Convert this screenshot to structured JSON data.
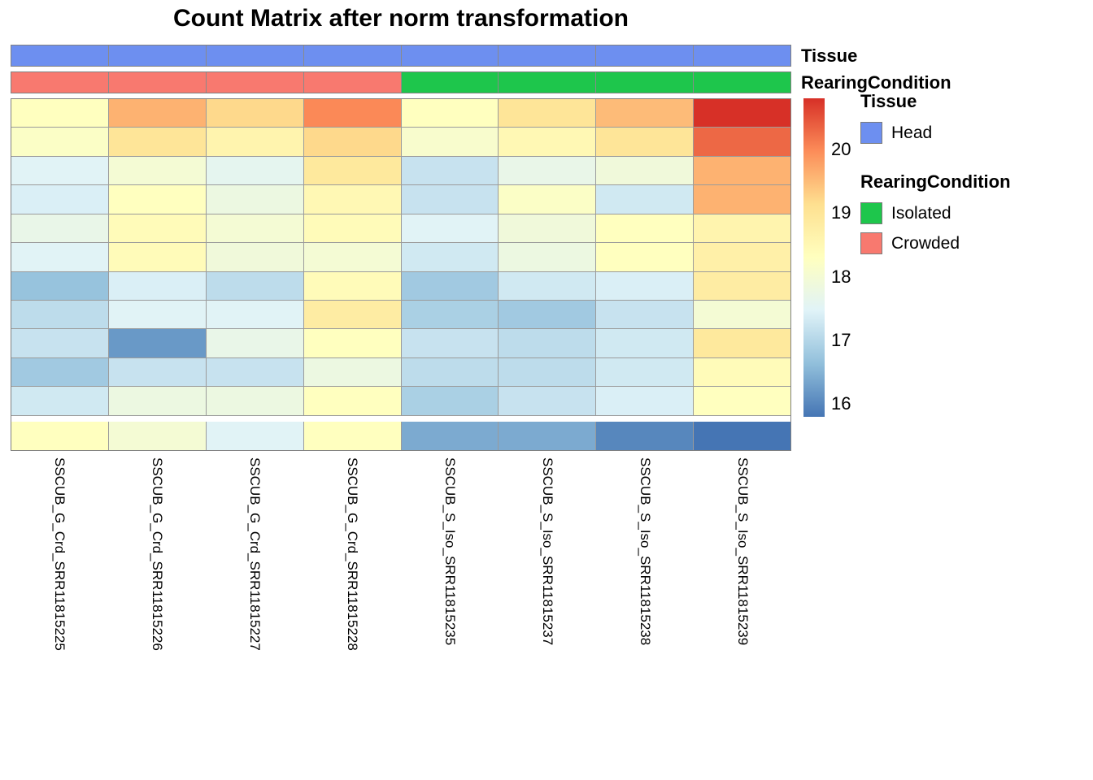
{
  "annotations": {
    "tissue": {
      "label": "Tissue",
      "values": [
        "Head",
        "Head",
        "Head",
        "Head",
        "Head",
        "Head",
        "Head",
        "Head"
      ],
      "colors": {
        "Head": "#6d8ff0"
      }
    },
    "rearing": {
      "label": "RearingCondition",
      "values": [
        "Crowded",
        "Crowded",
        "Crowded",
        "Crowded",
        "Isolated",
        "Isolated",
        "Isolated",
        "Isolated"
      ],
      "colors": {
        "Isolated": "#1ec64c",
        "Crowded": "#f8796f"
      }
    }
  },
  "chart_data": {
    "type": "heatmap",
    "title": "Count Matrix after norm transformation",
    "columns": [
      "SSCUB_G_Crd_SRR11815225",
      "SSCUB_G_Crd_SRR11815226",
      "SSCUB_G_Crd_SRR11815227",
      "SSCUB_G_Crd_SRR11815228",
      "SSCUB_S_Iso_SRR11815235",
      "SSCUB_S_Iso_SRR11815237",
      "SSCUB_S_Iso_SRR11815238",
      "SSCUB_S_Iso_SRR11815239"
    ],
    "values": [
      [
        18.3,
        19.6,
        19.2,
        20.0,
        18.3,
        19.0,
        19.5,
        20.8
      ],
      [
        18.2,
        19.0,
        18.6,
        19.2,
        18.1,
        18.5,
        19.0,
        20.3
      ],
      [
        17.5,
        18.0,
        17.6,
        18.9,
        17.2,
        17.7,
        17.9,
        19.6
      ],
      [
        17.4,
        18.3,
        17.8,
        18.5,
        17.2,
        18.2,
        17.3,
        19.6
      ],
      [
        17.7,
        18.4,
        18.0,
        18.4,
        17.5,
        17.9,
        18.3,
        18.6
      ],
      [
        17.5,
        18.4,
        17.9,
        18.0,
        17.3,
        17.8,
        18.3,
        18.7
      ],
      [
        16.7,
        17.4,
        17.1,
        18.4,
        16.8,
        17.3,
        17.4,
        18.8
      ],
      [
        17.1,
        17.5,
        17.5,
        18.8,
        16.9,
        16.8,
        17.2,
        18.0
      ],
      [
        17.2,
        16.2,
        17.7,
        18.3,
        17.2,
        17.1,
        17.3,
        18.9
      ],
      [
        16.8,
        17.2,
        17.2,
        17.8,
        17.1,
        17.1,
        17.3,
        18.4
      ],
      [
        17.3,
        17.8,
        17.8,
        18.3,
        16.9,
        17.2,
        17.4,
        18.3
      ],
      [
        18.3,
        18.0,
        17.5,
        18.3,
        16.4,
        16.4,
        16.0,
        15.8
      ]
    ],
    "gap_before_row": 11,
    "color_scale": {
      "palette": [
        "#4575b4",
        "#91bfdb",
        "#e0f3f8",
        "#ffffbf",
        "#fee090",
        "#fc8d59",
        "#d73027"
      ],
      "domain": [
        15.8,
        20.8
      ],
      "ticks": [
        20,
        19,
        18,
        17,
        16
      ]
    }
  },
  "legend": {
    "tissue_title": "Tissue",
    "tissue_items": [
      {
        "label": "Head",
        "color": "#6d8ff0"
      }
    ],
    "rearing_title": "RearingCondition",
    "rearing_items": [
      {
        "label": "Isolated",
        "color": "#1ec64c"
      },
      {
        "label": "Crowded",
        "color": "#f8796f"
      }
    ]
  }
}
